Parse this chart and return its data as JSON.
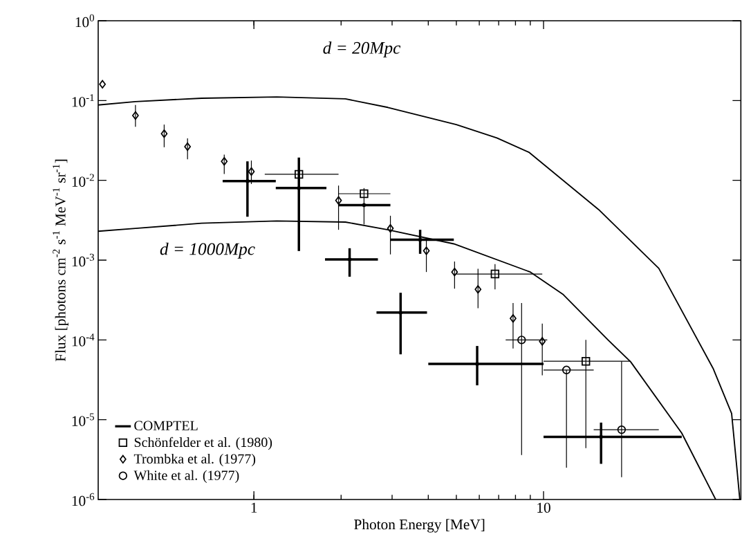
{
  "chart_data": {
    "type": "scatter",
    "xlabel": "Photon Energy [MeV]",
    "ylabel": "Flux [photons cm$^{-2}$ s$^{-1}$ MeV$^{-1}$ sr$^{-1}$]",
    "log": "xy",
    "grid": false,
    "legend": "bottom left",
    "xlim": [
      0.29,
      48
    ],
    "ylim": [
      1e-06,
      1
    ],
    "xticks": [
      1,
      10
    ],
    "yticks": [
      {
        "value": 1e-06,
        "label": "10$^{-6}$"
      },
      {
        "value": 1e-05,
        "label": "10$^{-5}$"
      },
      {
        "value": 0.0001,
        "label": "10$^{-4}$"
      },
      {
        "value": 0.001,
        "label": "10$^{-3}$"
      },
      {
        "value": 0.01,
        "label": "10$^{-2}$"
      },
      {
        "value": 0.1,
        "label": "10$^{-1}$"
      },
      {
        "value": 1,
        "label": "10$^{0}$"
      }
    ],
    "annotations": [
      "d = 20Mpc",
      "d = 1000Mpc"
    ],
    "series": [
      {
        "name": "COMPTEL",
        "color": "#000000",
        "marker": "none",
        "x": [
          0.95,
          1.43,
          2.4,
          3.75,
          2.14,
          3.21,
          5.9,
          15.8
        ],
        "values": [
          0.0098,
          0.008,
          0.0049,
          0.0018,
          0.00102,
          0.00022,
          5e-05,
          6.1e-06
        ],
        "xerrors": [
          [
            0.78,
            1.19
          ],
          [
            1.19,
            1.78
          ],
          [
            1.96,
            2.96
          ],
          [
            2.96,
            4.9
          ],
          [
            1.76,
            2.68
          ],
          [
            2.65,
            3.96
          ],
          [
            4,
            10
          ],
          [
            10,
            30
          ]
        ],
        "errors": [
          [
            0.0035,
            0.0173
          ],
          [
            0.0013,
            0.0193
          ],
          null,
          [
            0.0012,
            0.0024
          ],
          [
            0.00062,
            0.00141
          ],
          [
            6.6e-05,
            0.00039
          ],
          [
            2.7e-05,
            8.4e-05
          ],
          [
            2.8e-06,
            9.2e-06
          ]
        ]
      },
      {
        "name": "Schönfelder et al. (1980)",
        "color": "#000000",
        "marker": "square",
        "x": [
          1.43,
          2.4,
          6.8,
          14
        ],
        "values": [
          0.0119,
          0.0068,
          0.00067,
          5.4e-05
        ],
        "xerrors": [
          [
            1.09,
            1.96
          ],
          [
            1.96,
            2.96
          ],
          [
            5,
            9.9
          ],
          [
            10,
            20
          ]
        ],
        "errors": [
          null,
          [
            0.0028,
            0.008
          ],
          [
            0.00043,
            0.00089
          ],
          [
            4.4e-06,
            0.0001
          ]
        ]
      },
      {
        "name": "Trombka et al. (1977)",
        "color": "#000000",
        "marker": "diamond",
        "x": [
          0.3,
          0.39,
          0.49,
          0.59,
          0.79,
          0.98,
          1.96,
          2.96,
          3.94,
          4.93,
          5.94,
          7.85,
          9.9
        ],
        "values": [
          0.16,
          0.065,
          0.0385,
          0.0264,
          0.0173,
          0.0129,
          0.0056,
          0.0025,
          0.00131,
          0.00071,
          0.00043,
          0.000186,
          9.6e-05
        ],
        "errors": [
          null,
          [
            0.047,
            0.088
          ],
          [
            0.026,
            0.05
          ],
          [
            0.0184,
            0.0336
          ],
          [
            0.012,
            0.021
          ],
          [
            0.009,
            0.0177
          ],
          [
            0.0024,
            0.0086
          ],
          [
            0.00118,
            0.0036
          ],
          [
            0.00071,
            0.0019
          ],
          [
            0.00044,
            0.00096
          ],
          [
            0.00025,
            0.00078
          ],
          [
            7.8e-05,
            0.00029
          ],
          [
            3.6e-05,
            0.00016
          ]
        ]
      },
      {
        "name": "White et al. (1977)",
        "color": "#000000",
        "marker": "circle",
        "x": [
          8.4,
          12,
          18.6
        ],
        "values": [
          0.0001,
          4.2e-05,
          7.5e-06
        ],
        "xerrors": [
          [
            7.4,
            10.3
          ],
          [
            10,
            14.9
          ],
          [
            14.9,
            25
          ]
        ],
        "errors": [
          [
            3.6e-06,
            0.00029
          ],
          [
            2.5e-06,
            4.2e-05
          ],
          [
            1.9e-06,
            5.4e-05
          ]
        ]
      },
      {
        "type": "line",
        "color": "#000000",
        "marker": "none",
        "x": [
          0.29,
          0.39,
          0.66,
          1.2,
          2.07,
          2.9,
          5.0,
          6.9,
          8.9,
          15.5,
          25,
          38.5,
          44.6,
          46.6,
          47.6
        ],
        "values": [
          0.088,
          0.097,
          0.107,
          0.111,
          0.105,
          0.082,
          0.05,
          0.034,
          0.0225,
          0.0043,
          0.00079,
          4.4e-05,
          1.2e-05,
          2.3e-06,
          1e-06
        ]
      },
      {
        "type": "line",
        "color": "#000000",
        "marker": "none",
        "x": [
          0.29,
          0.39,
          0.66,
          1.2,
          2.07,
          2.9,
          4.9,
          9.0,
          11.7,
          16.7,
          20,
          30,
          39.3
        ],
        "values": [
          0.0023,
          0.0025,
          0.0029,
          0.0031,
          0.003,
          0.0024,
          0.0016,
          0.00071,
          0.00037,
          0.0001,
          5.3e-05,
          6.8e-06,
          1e-06
        ]
      }
    ]
  }
}
